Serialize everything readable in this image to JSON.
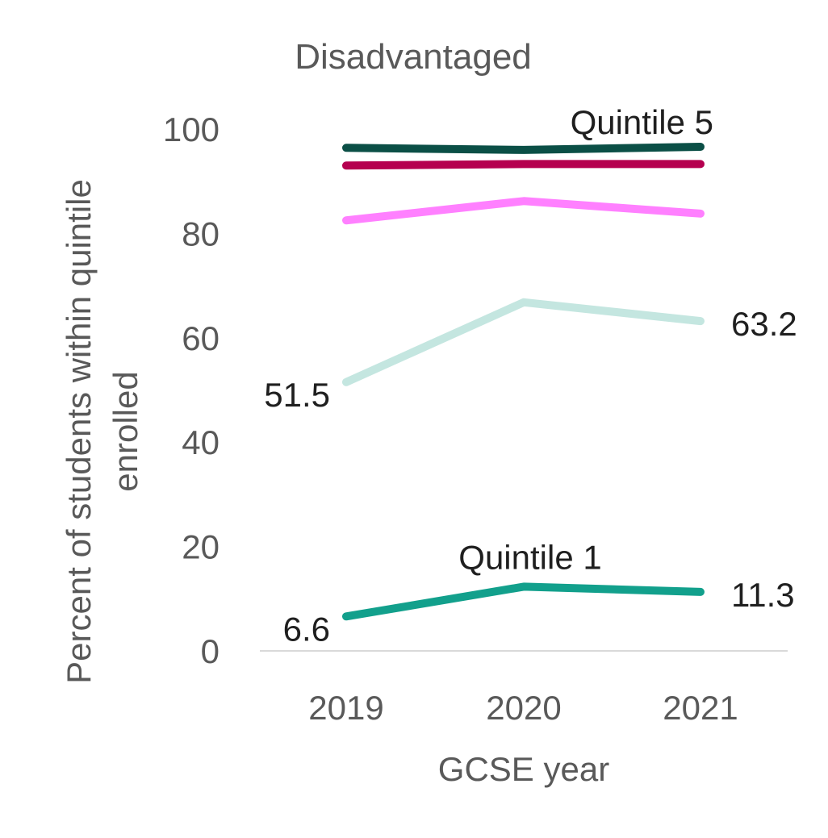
{
  "chart_data": {
    "type": "line",
    "title": "Disadvantaged",
    "xlabel": "GCSE year",
    "ylabel_line1": "Percent of students within quintile",
    "ylabel_line2": "enrolled",
    "categories": [
      "2019",
      "2020",
      "2021"
    ],
    "ylim": [
      0,
      100
    ],
    "yticks": [
      0,
      20,
      40,
      60,
      80,
      100
    ],
    "grid": false,
    "legend": "none",
    "series": [
      {
        "name": "Quintile 5",
        "values": [
          96.4,
          96.0,
          96.6
        ],
        "color": "#0b4f46"
      },
      {
        "values": [
          93.0,
          93.3,
          93.3
        ],
        "color": "#b5004f"
      },
      {
        "values": [
          82.5,
          86.2,
          83.8
        ],
        "color": "#ff80ff"
      },
      {
        "values": [
          51.5,
          66.8,
          63.2
        ],
        "color": "#c4e6e0"
      },
      {
        "name": "Quintile 1",
        "values": [
          6.6,
          12.3,
          11.3
        ],
        "color": "#12a08c"
      }
    ],
    "annotations": [
      {
        "text": "Quintile 5",
        "series": 0,
        "point": 2,
        "place": "above-left"
      },
      {
        "text": "Quintile 1",
        "series": 4,
        "point": 1,
        "place": "above"
      },
      {
        "text": "51.5",
        "series": 3,
        "point": 0,
        "place": "left"
      },
      {
        "text": "63.2",
        "series": 3,
        "point": 2,
        "place": "right"
      },
      {
        "text": "6.6",
        "series": 4,
        "point": 0,
        "place": "left"
      },
      {
        "text": "11.3",
        "series": 4,
        "point": 2,
        "place": "right"
      }
    ]
  }
}
